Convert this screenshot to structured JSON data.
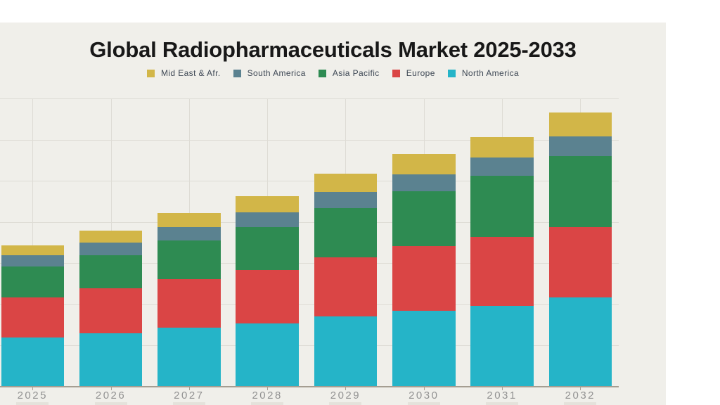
{
  "header": {
    "title": "Global Radiopharmaceuticals Market 2025-2033"
  },
  "legend": {
    "items": [
      {
        "label": "Mid East & Afr.",
        "color": "#d2b648"
      },
      {
        "label": "South America",
        "color": "#5b8290"
      },
      {
        "label": "Asia Pacific",
        "color": "#2e8b52"
      },
      {
        "label": "Europe",
        "color": "#da4545"
      },
      {
        "label": "North America",
        "color": "#25b4c8"
      }
    ]
  },
  "chart_data": {
    "type": "bar",
    "stacked": true,
    "title": "Global Radiopharmaceuticals Market 2025-2033",
    "categories": [
      "2025",
      "2026",
      "2027",
      "2028",
      "2029",
      "2030",
      "2031",
      "2032"
    ],
    "series": [
      {
        "name": "North America",
        "color": "#25b4c8",
        "values": [
          1.2,
          1.3,
          1.43,
          1.54,
          1.71,
          1.84,
          1.96,
          2.17
        ]
      },
      {
        "name": "Europe",
        "color": "#da4545",
        "values": [
          0.97,
          1.09,
          1.18,
          1.3,
          1.43,
          1.57,
          1.67,
          1.71
        ]
      },
      {
        "name": "Asia Pacific",
        "color": "#2e8b52",
        "values": [
          0.75,
          0.8,
          0.94,
          1.04,
          1.2,
          1.33,
          1.5,
          1.72
        ]
      },
      {
        "name": "South America",
        "color": "#5b8290",
        "values": [
          0.27,
          0.31,
          0.32,
          0.36,
          0.39,
          0.41,
          0.43,
          0.48
        ]
      },
      {
        "name": "Mid East & Afr.",
        "color": "#d2b648",
        "values": [
          0.24,
          0.29,
          0.34,
          0.39,
          0.44,
          0.51,
          0.51,
          0.58
        ]
      }
    ],
    "totals": [
      3.43,
      3.79,
      4.21,
      4.63,
      5.17,
      5.66,
      6.07,
      6.66
    ],
    "units": "relative units; no y-axis value labels visible, 1 unit = one horizontal gridline interval",
    "xlabel": "",
    "ylabel": "",
    "ylim": [
      0,
      7
    ],
    "grid": true,
    "legend_position": "top"
  },
  "axis": {
    "baseline_color": "#a59e92",
    "gridline_color": "#dedcd5",
    "tick_label_color": "#929292"
  },
  "colors": {
    "slide_background": "#f0efea",
    "page_background": "#ffffff",
    "title_text": "#181818",
    "legend_text": "#3d4754"
  }
}
